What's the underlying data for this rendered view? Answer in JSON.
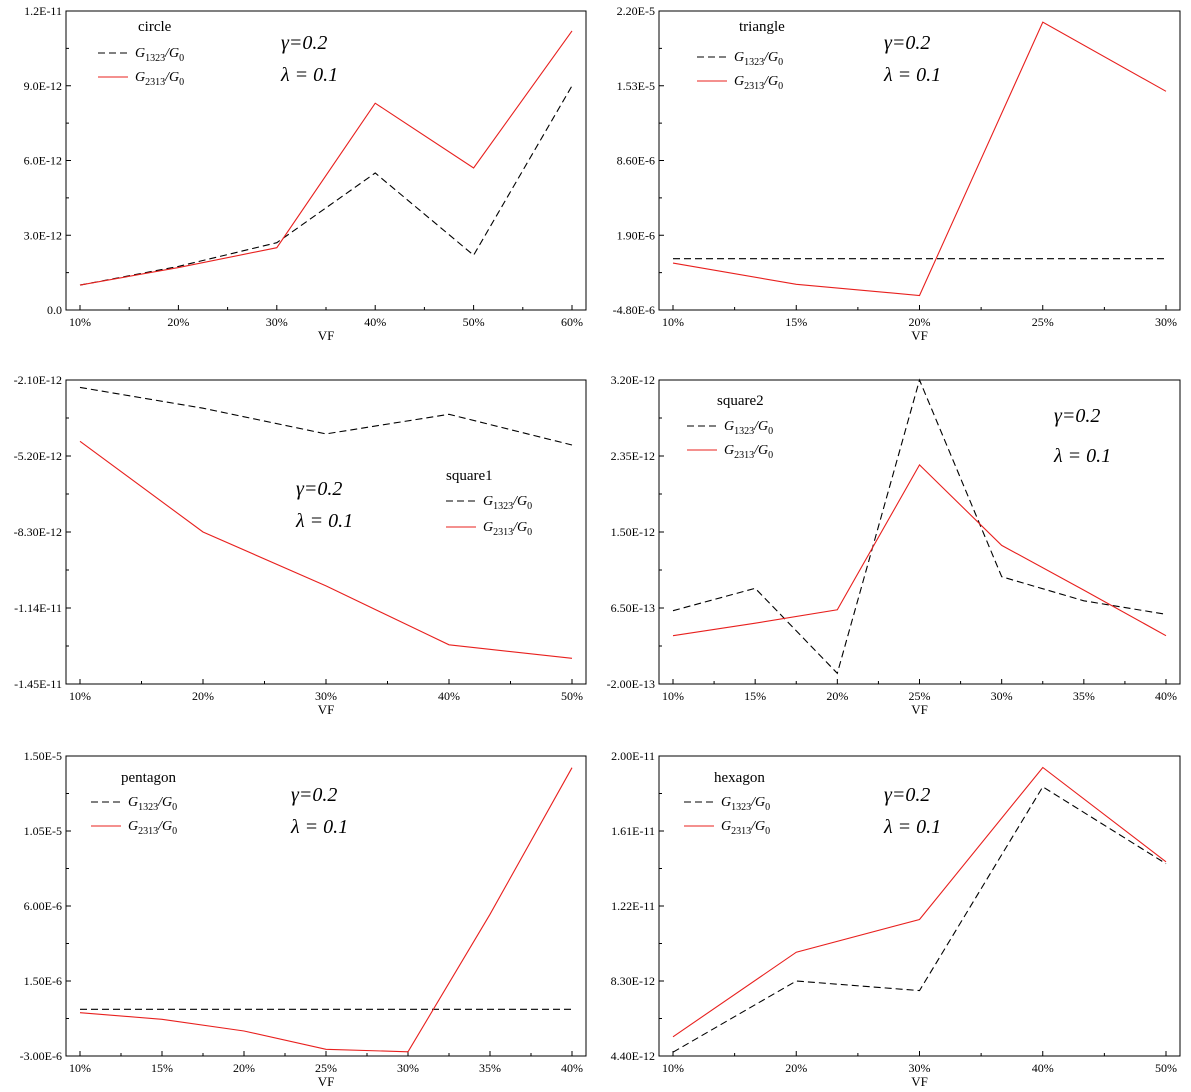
{
  "chart_data": [
    {
      "type": "line",
      "title": "circle",
      "xlabel": "VF",
      "categories": [
        "10%",
        "20%",
        "30%",
        "40%",
        "50%",
        "60%"
      ],
      "y_ticks": [
        "0.0",
        "3.0E-12",
        "6.0E-12",
        "9.0E-12",
        "1.2E-11"
      ],
      "ylim": [
        0,
        1.2e-11
      ],
      "series": [
        {
          "name": "G1323/G0",
          "legend_main": "G",
          "legend_sub": "1323",
          "legend_tail": "/G",
          "legend_tail_sub": "0",
          "style": "dashed",
          "color": "#000000",
          "values": [
            1e-12,
            1.75e-12,
            2.7e-12,
            5.5e-12,
            2.2e-12,
            9e-12
          ]
        },
        {
          "name": "G2313/G0",
          "legend_main": "G",
          "legend_sub": "2313",
          "legend_tail": "/G",
          "legend_tail_sub": "0",
          "style": "solid",
          "color": "#e8201e",
          "values": [
            1e-12,
            1.7e-12,
            2.5e-12,
            8.3e-12,
            5.7e-12,
            1.12e-11
          ]
        }
      ],
      "params": [
        "γ=0.2",
        "λ = 0.1"
      ]
    },
    {
      "type": "line",
      "title": "triangle",
      "xlabel": "VF",
      "categories": [
        "10%",
        "15%",
        "20%",
        "25%",
        "30%"
      ],
      "y_ticks": [
        "-4.80E-6",
        "1.90E-6",
        "8.60E-6",
        "1.53E-5",
        "2.20E-5"
      ],
      "ylim": [
        -4.8e-06,
        2.2e-05
      ],
      "series": [
        {
          "name": "G1323/G0",
          "legend_main": "G",
          "legend_sub": "1323",
          "legend_tail": "/G",
          "legend_tail_sub": "0",
          "style": "dashed",
          "color": "#000000",
          "values": [
            -2e-07,
            -2e-07,
            -2e-07,
            -2e-07,
            -2e-07
          ]
        },
        {
          "name": "G2313/G0",
          "legend_main": "G",
          "legend_sub": "2313",
          "legend_tail": "/G",
          "legend_tail_sub": "0",
          "style": "solid",
          "color": "#e8201e",
          "values": [
            -6e-07,
            -2.5e-06,
            -3.5e-06,
            2.1e-05,
            1.48e-05
          ]
        }
      ],
      "params": [
        "γ=0.2",
        "λ = 0.1"
      ]
    },
    {
      "type": "line",
      "title": "square1",
      "xlabel": "VF",
      "categories": [
        "10%",
        "20%",
        "30%",
        "40%",
        "50%"
      ],
      "y_ticks": [
        "-1.45E-11",
        "-1.14E-11",
        "-8.30E-12",
        "-5.20E-12",
        "-2.10E-12"
      ],
      "ylim": [
        -1.45e-11,
        -2.1e-12
      ],
      "series": [
        {
          "name": "G1323/G0",
          "legend_main": "G",
          "legend_sub": "1323",
          "legend_tail": "/G",
          "legend_tail_sub": "0",
          "style": "dashed",
          "color": "#000000",
          "values": [
            -2.4e-12,
            -3.25e-12,
            -4.3e-12,
            -3.5e-12,
            -4.75e-12
          ]
        },
        {
          "name": "G2313/G0",
          "legend_main": "G",
          "legend_sub": "2313",
          "legend_tail": "/G",
          "legend_tail_sub": "0",
          "style": "solid",
          "color": "#e8201e",
          "values": [
            -4.6e-12,
            -8.3e-12,
            -1.05e-11,
            -1.29e-11,
            -1.345e-11
          ]
        }
      ],
      "params": [
        "γ=0.2",
        "λ = 0.1"
      ]
    },
    {
      "type": "line",
      "title": "square2",
      "xlabel": "VF",
      "categories": [
        "10%",
        "15%",
        "20%",
        "25%",
        "30%",
        "35%",
        "40%"
      ],
      "y_ticks": [
        "-2.00E-13",
        "6.50E-13",
        "1.50E-12",
        "2.35E-12",
        "3.20E-12"
      ],
      "ylim": [
        -2e-13,
        3.2e-12
      ],
      "series": [
        {
          "name": "G1323/G0",
          "legend_main": "G",
          "legend_sub": "1323",
          "legend_tail": "/G",
          "legend_tail_sub": "0",
          "style": "dashed",
          "color": "#000000",
          "values": [
            6.2e-13,
            8.7e-13,
            -8e-14,
            3.2e-12,
            1e-12,
            7.3e-13,
            5.8e-13
          ]
        },
        {
          "name": "G2313/G0",
          "legend_main": "G",
          "legend_sub": "2313",
          "legend_tail": "/G",
          "legend_tail_sub": "0",
          "style": "solid",
          "color": "#e8201e",
          "values": [
            3.4e-13,
            4.8e-13,
            6.3e-13,
            2.25e-12,
            1.35e-12,
            8.5e-13,
            3.4e-13
          ]
        }
      ],
      "params": [
        "γ=0.2",
        "λ = 0.1"
      ]
    },
    {
      "type": "line",
      "title": "pentagon",
      "xlabel": "VF",
      "categories": [
        "10%",
        "15%",
        "20%",
        "25%",
        "30%",
        "35%",
        "40%"
      ],
      "y_ticks": [
        "-3.00E-6",
        "1.50E-6",
        "6.00E-6",
        "1.05E-5",
        "1.50E-5"
      ],
      "ylim": [
        -3e-06,
        1.5e-05
      ],
      "series": [
        {
          "name": "G1323/G0",
          "legend_main": "G",
          "legend_sub": "1323",
          "legend_tail": "/G",
          "legend_tail_sub": "0",
          "style": "dashed",
          "color": "#000000",
          "values": [
            -2e-07,
            -2e-07,
            -2e-07,
            -2e-07,
            -2e-07,
            -2e-07,
            -2e-07
          ]
        },
        {
          "name": "G2313/G0",
          "legend_main": "G",
          "legend_sub": "2313",
          "legend_tail": "/G",
          "legend_tail_sub": "0",
          "style": "solid",
          "color": "#e8201e",
          "values": [
            -4e-07,
            -8e-07,
            -1.5e-06,
            -2.6e-06,
            -2.75e-06,
            5.5e-06,
            1.43e-05
          ]
        }
      ],
      "params": [
        "γ=0.2",
        "λ = 0.1"
      ]
    },
    {
      "type": "line",
      "title": "hexagon",
      "xlabel": "VF",
      "categories": [
        "10%",
        "20%",
        "30%",
        "40%",
        "50%"
      ],
      "y_ticks": [
        "4.40E-12",
        "8.30E-12",
        "1.22E-11",
        "1.61E-11",
        "2.00E-11"
      ],
      "ylim": [
        4.4e-12,
        2e-11
      ],
      "series": [
        {
          "name": "G1323/G0",
          "legend_main": "G",
          "legend_sub": "1323",
          "legend_tail": "/G",
          "legend_tail_sub": "0",
          "style": "dashed",
          "color": "#000000",
          "values": [
            4.6e-12,
            8.3e-12,
            7.8e-12,
            1.84e-11,
            1.44e-11
          ]
        },
        {
          "name": "G2313/G0",
          "legend_main": "G",
          "legend_sub": "2313",
          "legend_tail": "/G",
          "legend_tail_sub": "0",
          "style": "solid",
          "color": "#e8201e",
          "values": [
            5.4e-12,
            9.8e-12,
            1.15e-11,
            1.94e-11,
            1.45e-11
          ]
        }
      ],
      "params": [
        "γ=0.2",
        "λ = 0.1"
      ]
    }
  ]
}
